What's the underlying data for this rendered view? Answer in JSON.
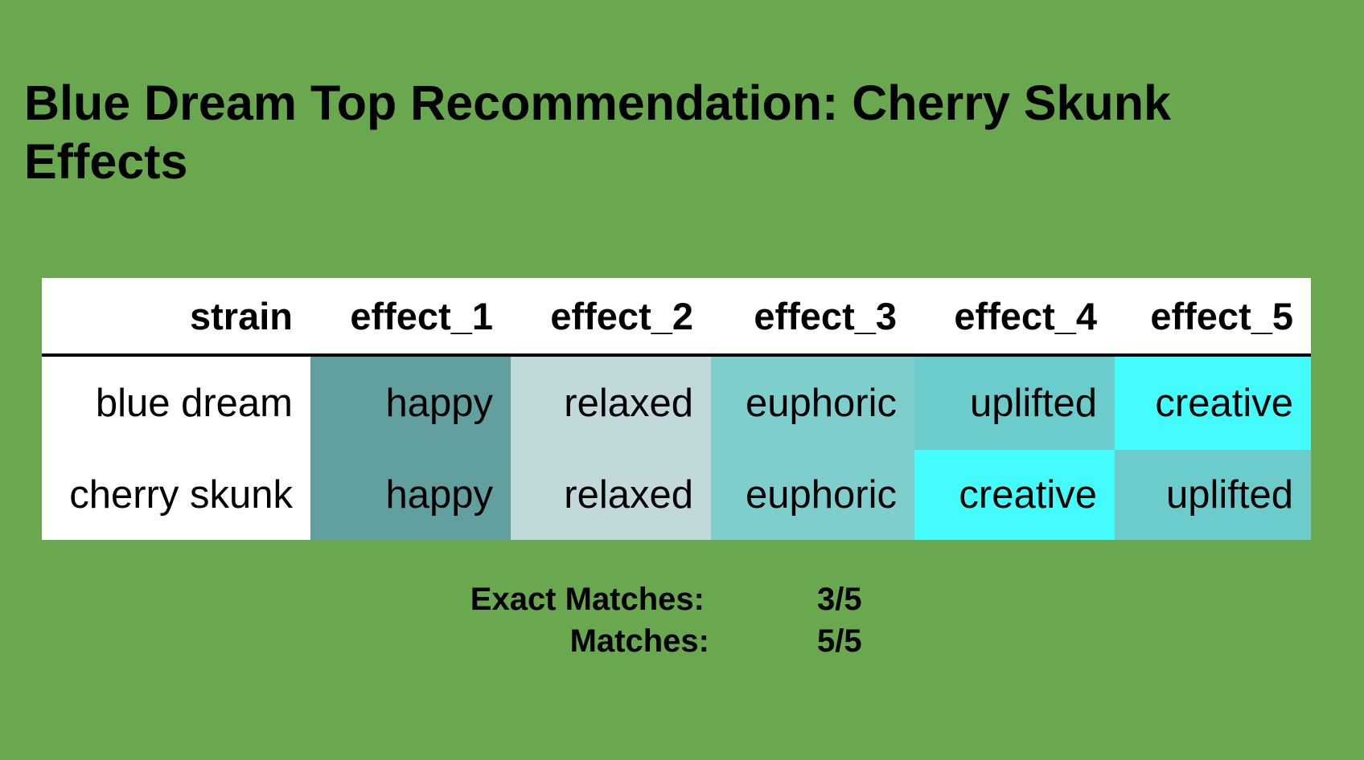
{
  "background_color": "#6aa84f",
  "title": "Blue Dream Top Recommendation: Cherry Skunk Effects",
  "table": {
    "headers": [
      "strain",
      "effect_1",
      "effect_2",
      "effect_3",
      "effect_4",
      "effect_5"
    ],
    "rows": [
      {
        "strain": "blue dream",
        "effects": [
          "happy",
          "relaxed",
          "euphoric",
          "uplifted",
          "creative"
        ],
        "colors": [
          "#62a0a0",
          "#c1d9da",
          "#7fcece",
          "#6ccccb",
          "#44fcfc"
        ]
      },
      {
        "strain": "cherry skunk",
        "effects": [
          "happy",
          "relaxed",
          "euphoric",
          "creative",
          "uplifted"
        ],
        "colors": [
          "#62a0a0",
          "#c1d9da",
          "#7fcece",
          "#44fcfc",
          "#6ccccb"
        ]
      }
    ]
  },
  "summary": {
    "exact_matches_label": "Exact Matches:",
    "exact_matches_value": "3/5",
    "matches_label": "Matches:",
    "matches_value": "5/5"
  }
}
